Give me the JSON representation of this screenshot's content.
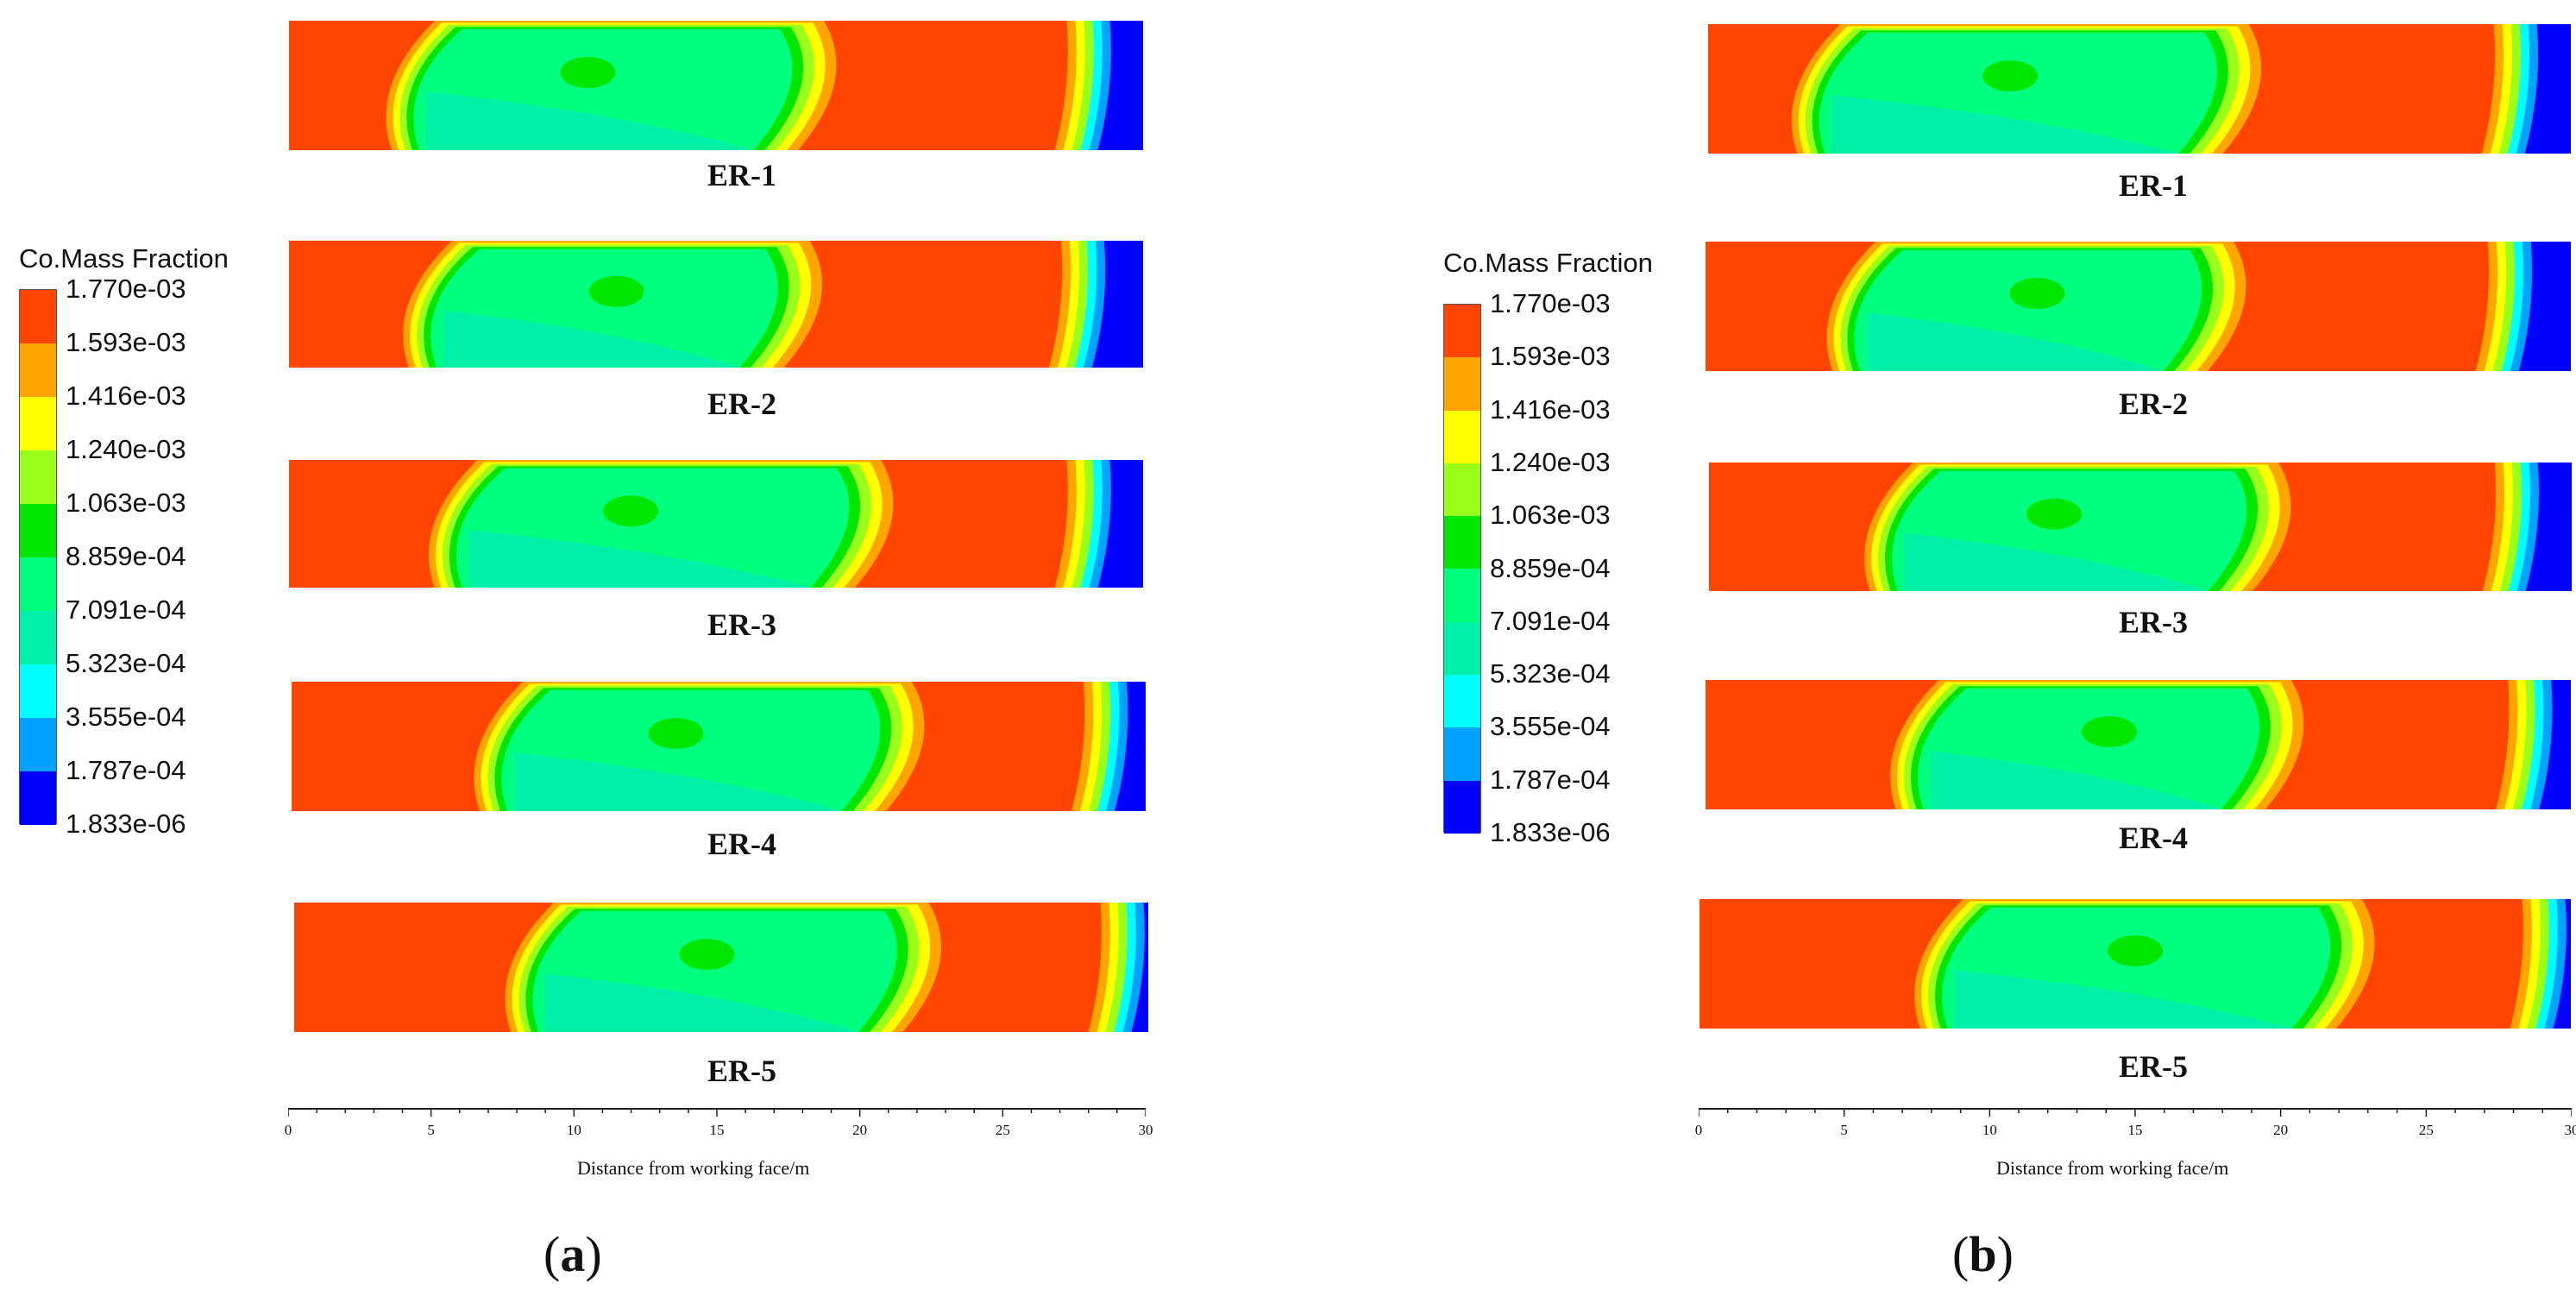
{
  "colors": {
    "scale": [
      "#ff4500",
      "#ffa500",
      "#ffff00",
      "#9aff1a",
      "#00e600",
      "#00ff7f",
      "#00f0a8",
      "#00ffff",
      "#00a2ff",
      "#0000ff"
    ]
  },
  "legend": {
    "title": "Co.Mass Fraction",
    "labels": [
      "1.770e-03",
      "1.593e-03",
      "1.416e-03",
      "1.240e-03",
      "1.063e-03",
      "8.859e-04",
      "7.091e-04",
      "5.323e-04",
      "3.555e-04",
      "1.787e-04",
      "1.833e-06"
    ]
  },
  "axis": {
    "title": "Distance from working face/m",
    "ticks": [
      "0",
      "5",
      "10",
      "15",
      "20",
      "25",
      "30"
    ]
  },
  "panels": [
    {
      "caption_open": "(",
      "caption_letter": "a",
      "caption_close": ")",
      "plots": [
        {
          "label": "ER-1",
          "cloud_start_m": 3.0,
          "front_m": 20.0,
          "outlet_m": 27.5,
          "core_m": 10.5
        },
        {
          "label": "ER-2",
          "cloud_start_m": 3.6,
          "front_m": 19.5,
          "outlet_m": 27.3,
          "core_m": 11.5
        },
        {
          "label": "ER-3",
          "cloud_start_m": 4.5,
          "front_m": 22.0,
          "outlet_m": 27.5,
          "core_m": 12.0
        },
        {
          "label": "ER-4",
          "cloud_start_m": 6.0,
          "front_m": 23.0,
          "outlet_m": 28.0,
          "core_m": 13.5
        },
        {
          "label": "ER-5",
          "cloud_start_m": 7.0,
          "front_m": 23.5,
          "outlet_m": 28.5,
          "core_m": 14.5
        }
      ]
    },
    {
      "caption_open": "(",
      "caption_letter": "b",
      "caption_close": ")",
      "plots": [
        {
          "label": "ER-1",
          "cloud_start_m": 2.5,
          "front_m": 20.0,
          "outlet_m": 27.5,
          "core_m": 10.5
        },
        {
          "label": "ER-2",
          "cloud_start_m": 3.8,
          "front_m": 19.5,
          "outlet_m": 27.3,
          "core_m": 11.5
        },
        {
          "label": "ER-3",
          "cloud_start_m": 5.0,
          "front_m": 21.0,
          "outlet_m": 27.5,
          "core_m": 12.0
        },
        {
          "label": "ER-4",
          "cloud_start_m": 6.0,
          "front_m": 21.5,
          "outlet_m": 28.0,
          "core_m": 14.0
        },
        {
          "label": "ER-5",
          "cloud_start_m": 7.0,
          "front_m": 24.0,
          "outlet_m": 28.5,
          "core_m": 15.0
        }
      ]
    }
  ]
}
